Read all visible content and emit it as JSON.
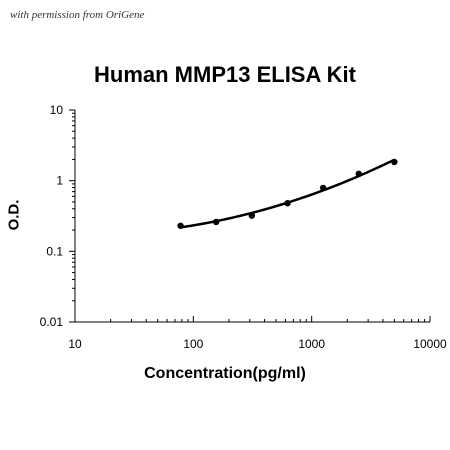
{
  "watermark": "with permission from OriGene",
  "chart_data": {
    "type": "scatter",
    "title": "Human MMP13 ELISA Kit",
    "xlabel": "Concentration(pg/ml)",
    "ylabel": "O.D.",
    "xscale": "log",
    "yscale": "log",
    "xlim": [
      10,
      10000
    ],
    "ylim": [
      0.01,
      10
    ],
    "x_ticks": [
      "10",
      "100",
      "1000",
      "10000"
    ],
    "y_ticks": [
      "0.01",
      "0.1",
      "1",
      "10"
    ],
    "grid": false,
    "legend": "none",
    "fit_line": true,
    "color": "#000000",
    "series": [
      {
        "x": [
          78,
          156,
          312,
          625,
          1250,
          2500,
          5000
        ],
        "y": [
          0.23,
          0.26,
          0.32,
          0.48,
          0.79,
          1.25,
          1.84
        ]
      }
    ]
  }
}
